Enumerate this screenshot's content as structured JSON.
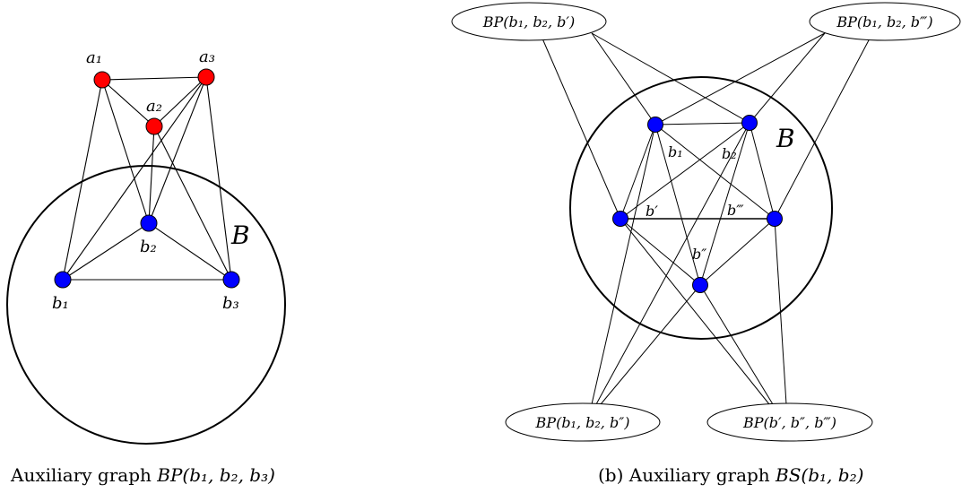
{
  "left_panel": {
    "region_label": "B",
    "nodes": {
      "a1": "a₁",
      "a2": "a₂",
      "a3": "a₃",
      "b1": "b₁",
      "b2": "b₂",
      "b3": "b₃"
    },
    "caption_text": "Auxiliary graph ",
    "caption_math": "BP(b₁, b₂, b₃)"
  },
  "right_panel": {
    "region_label": "B",
    "nodes": {
      "b1": "b₁",
      "b2": "b₂",
      "bp": "b′",
      "bpp": "b″",
      "bppp": "b‴"
    },
    "ellipses": {
      "top_left": "BP(b₁, b₂, b′)",
      "top_right": "BP(b₁, b₂, b‴)",
      "bottom_left": "BP(b₁, b₂, b″)",
      "bottom_right": "BP(b′, b″, b‴)"
    },
    "caption_text": "(b) Auxiliary graph ",
    "caption_math": "BS(b₁, b₂)"
  },
  "colors": {
    "red_node": "#ff0000",
    "blue_node": "#0000ff",
    "stroke": "#000000"
  }
}
